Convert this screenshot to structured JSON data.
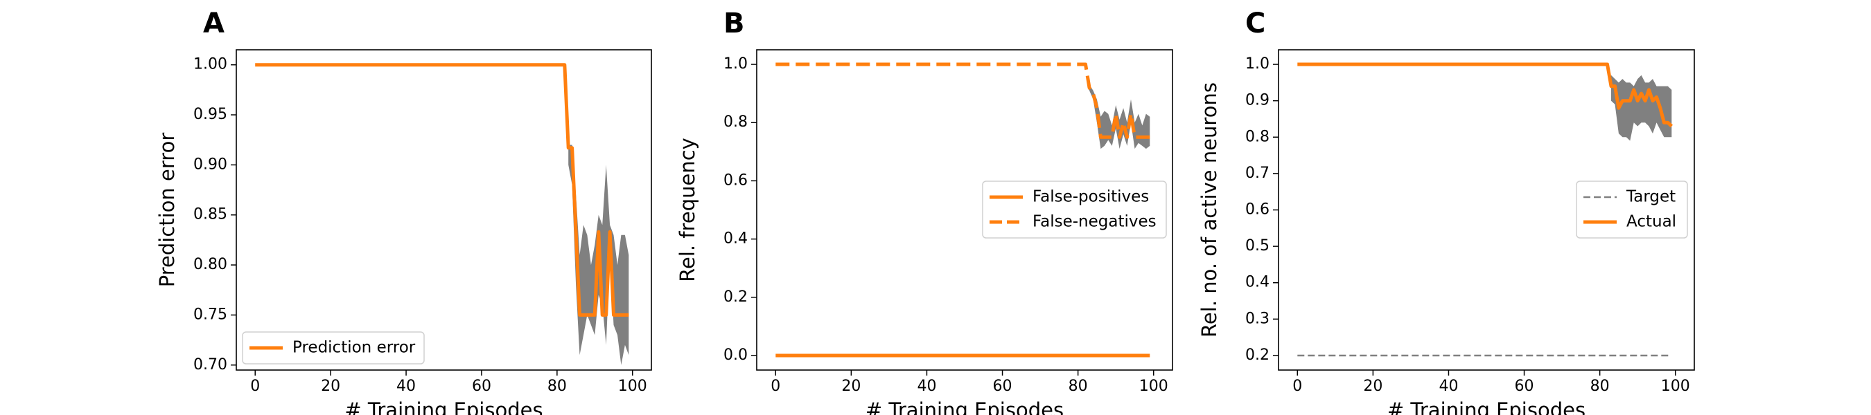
{
  "figure": {
    "accent_color": "#ff7f0e",
    "band_color": "#808080",
    "target_color": "#808080"
  },
  "chart_data": [
    {
      "type": "line",
      "panel": "A",
      "title": "",
      "xlabel": "# Training Episodes",
      "ylabel": "Prediction error",
      "xlim": [
        -5,
        105
      ],
      "ylim": [
        0.695,
        1.015
      ],
      "xticks": [
        0,
        20,
        40,
        60,
        80,
        100
      ],
      "xtick_labels": [
        "0",
        "20",
        "40",
        "60",
        "80",
        "100"
      ],
      "yticks": [
        0.7,
        0.75,
        0.8,
        0.85,
        0.9,
        0.95,
        1.0
      ],
      "ytick_labels": [
        "0.70",
        "0.75",
        "0.80",
        "0.85",
        "0.90",
        "0.95",
        "1.00"
      ],
      "legend": {
        "position": "lower-left",
        "entries": [
          "Prediction error"
        ]
      },
      "grid": false,
      "series": [
        {
          "name": "Prediction error",
          "style": "solid",
          "x": [
            0,
            82,
            83,
            84,
            85,
            86,
            87,
            88,
            89,
            90,
            91,
            92,
            93,
            94,
            95,
            96,
            97,
            98,
            99
          ],
          "y": [
            1.0,
            1.0,
            0.917,
            0.917,
            0.833,
            0.75,
            0.75,
            0.75,
            0.75,
            0.75,
            0.833,
            0.75,
            0.75,
            0.833,
            0.75,
            0.75,
            0.75,
            0.75,
            0.75
          ]
        }
      ],
      "bands": [
        {
          "x": [
            83,
            84,
            85,
            86,
            87,
            88,
            89,
            90,
            91,
            92,
            93,
            94,
            95,
            96,
            97,
            98,
            99
          ],
          "upper": [
            0.92,
            0.92,
            0.87,
            0.81,
            0.84,
            0.83,
            0.8,
            0.82,
            0.85,
            0.84,
            0.9,
            0.84,
            0.83,
            0.8,
            0.83,
            0.83,
            0.81
          ],
          "lower": [
            0.9,
            0.88,
            0.78,
            0.71,
            0.73,
            0.75,
            0.74,
            0.73,
            0.77,
            0.76,
            0.72,
            0.81,
            0.74,
            0.73,
            0.7,
            0.72,
            0.71
          ]
        }
      ]
    },
    {
      "type": "line",
      "panel": "B",
      "title": "",
      "xlabel": "# Training Episodes",
      "ylabel": "Rel. frequency",
      "xlim": [
        -5,
        105
      ],
      "ylim": [
        -0.05,
        1.05
      ],
      "xticks": [
        0,
        20,
        40,
        60,
        80,
        100
      ],
      "xtick_labels": [
        "0",
        "20",
        "40",
        "60",
        "80",
        "100"
      ],
      "yticks": [
        0.0,
        0.2,
        0.4,
        0.6,
        0.8,
        1.0
      ],
      "ytick_labels": [
        "0.0",
        "0.2",
        "0.4",
        "0.6",
        "0.8",
        "1.0"
      ],
      "legend": {
        "position": "center-right",
        "entries": [
          "False-positives",
          "False-negatives"
        ]
      },
      "grid": false,
      "series": [
        {
          "name": "False-positives",
          "style": "solid",
          "x": [
            0,
            99
          ],
          "y": [
            0.0,
            0.0
          ]
        },
        {
          "name": "False-negatives",
          "style": "dashed",
          "x": [
            0,
            82,
            83,
            84,
            85,
            86,
            87,
            88,
            89,
            90,
            91,
            92,
            93,
            94,
            95,
            96,
            97,
            98,
            99
          ],
          "y": [
            1.0,
            1.0,
            0.92,
            0.9,
            0.85,
            0.75,
            0.75,
            0.75,
            0.75,
            0.83,
            0.75,
            0.8,
            0.75,
            0.83,
            0.75,
            0.75,
            0.75,
            0.75,
            0.75
          ]
        }
      ],
      "bands": [
        {
          "x": [
            83,
            84,
            85,
            86,
            87,
            88,
            89,
            90,
            91,
            92,
            93,
            94,
            95,
            96,
            97,
            98,
            99
          ],
          "upper": [
            0.93,
            0.91,
            0.88,
            0.82,
            0.84,
            0.83,
            0.79,
            0.86,
            0.81,
            0.85,
            0.8,
            0.88,
            0.8,
            0.83,
            0.79,
            0.83,
            0.82
          ],
          "lower": [
            0.91,
            0.88,
            0.8,
            0.71,
            0.72,
            0.74,
            0.72,
            0.78,
            0.71,
            0.76,
            0.72,
            0.8,
            0.71,
            0.73,
            0.72,
            0.71,
            0.72
          ]
        }
      ]
    },
    {
      "type": "line",
      "panel": "C",
      "title": "",
      "xlabel": "# Training Episodes",
      "ylabel": "Rel. no. of active neurons",
      "xlim": [
        -5,
        105
      ],
      "ylim": [
        0.16,
        1.04
      ],
      "xticks": [
        0,
        20,
        40,
        60,
        80,
        100
      ],
      "xtick_labels": [
        "0",
        "20",
        "40",
        "60",
        "80",
        "100"
      ],
      "yticks": [
        0.2,
        0.3,
        0.4,
        0.5,
        0.6,
        0.7,
        0.8,
        0.9,
        1.0
      ],
      "ytick_labels": [
        "0.2",
        "0.3",
        "0.4",
        "0.5",
        "0.6",
        "0.7",
        "0.8",
        "0.9",
        "1.0"
      ],
      "legend": {
        "position": "center-right",
        "entries": [
          "Target",
          "Actual"
        ]
      },
      "grid": false,
      "series": [
        {
          "name": "Target",
          "style": "dashed-thin",
          "x": [
            0,
            99
          ],
          "y": [
            0.2,
            0.2
          ]
        },
        {
          "name": "Actual",
          "style": "solid",
          "x": [
            0,
            82,
            83,
            84,
            85,
            86,
            87,
            88,
            89,
            90,
            91,
            92,
            93,
            94,
            95,
            96,
            97,
            98,
            99
          ],
          "y": [
            1.0,
            1.0,
            0.94,
            0.94,
            0.88,
            0.9,
            0.9,
            0.9,
            0.93,
            0.9,
            0.92,
            0.9,
            0.93,
            0.9,
            0.91,
            0.88,
            0.84,
            0.84,
            0.83
          ]
        }
      ],
      "bands": [
        {
          "x": [
            83,
            84,
            85,
            86,
            87,
            88,
            89,
            90,
            91,
            92,
            93,
            94,
            95,
            96,
            97,
            98,
            99
          ],
          "upper": [
            0.97,
            0.96,
            0.95,
            0.96,
            0.95,
            0.95,
            0.94,
            0.96,
            0.97,
            0.95,
            0.95,
            0.96,
            0.94,
            0.94,
            0.94,
            0.94,
            0.93
          ],
          "lower": [
            0.9,
            0.89,
            0.81,
            0.8,
            0.8,
            0.79,
            0.84,
            0.83,
            0.84,
            0.84,
            0.83,
            0.81,
            0.84,
            0.82,
            0.8,
            0.8,
            0.8
          ]
        }
      ]
    }
  ]
}
